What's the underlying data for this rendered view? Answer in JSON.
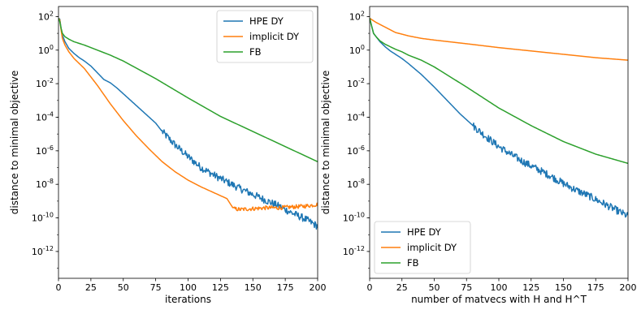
{
  "chart_data": [
    {
      "type": "line",
      "xlabel": "iterations",
      "ylabel": "distance to minimal objective",
      "yscale": "log",
      "xlim": [
        0,
        200
      ],
      "ylim_exp": [
        -13.6,
        2.6
      ],
      "xticks": [
        0,
        25,
        50,
        75,
        100,
        125,
        150,
        175,
        200
      ],
      "yticks_exp": [
        2,
        0,
        -2,
        -4,
        -6,
        -8,
        -10,
        -12
      ],
      "grid": false,
      "legend_placement": "top-right",
      "series": [
        {
          "name": "HPE DY",
          "color": "#1f77b4",
          "noisy_after": 80,
          "noise": 0.22,
          "x": [
            0,
            1,
            2,
            3,
            5,
            8,
            12,
            16,
            20,
            25,
            30,
            35,
            40,
            45,
            50,
            60,
            70,
            75,
            80,
            90,
            100,
            110,
            120,
            130,
            140,
            150,
            160,
            170,
            180,
            190,
            200
          ],
          "log10y": [
            1.9,
            1.85,
            1.3,
            0.9,
            0.5,
            0.1,
            -0.2,
            -0.45,
            -0.65,
            -0.95,
            -1.35,
            -1.75,
            -1.95,
            -2.25,
            -2.6,
            -3.3,
            -4.0,
            -4.35,
            -4.85,
            -5.65,
            -6.35,
            -7.0,
            -7.45,
            -7.85,
            -8.25,
            -8.6,
            -8.95,
            -9.3,
            -9.7,
            -10.05,
            -10.5
          ]
        },
        {
          "name": "implicit DY",
          "color": "#ff7f0e",
          "noisy_after": 135,
          "noise": 0.12,
          "x": [
            0,
            1,
            2,
            3,
            5,
            8,
            12,
            16,
            20,
            25,
            30,
            40,
            50,
            60,
            70,
            80,
            90,
            100,
            110,
            120,
            130,
            135,
            140,
            150,
            160,
            170,
            180,
            190,
            200
          ],
          "log10y": [
            1.9,
            1.8,
            1.2,
            0.7,
            0.3,
            -0.1,
            -0.5,
            -0.8,
            -1.1,
            -1.6,
            -2.1,
            -3.2,
            -4.2,
            -5.1,
            -5.9,
            -6.65,
            -7.25,
            -7.75,
            -8.15,
            -8.5,
            -8.85,
            -9.45,
            -9.5,
            -9.45,
            -9.4,
            -9.4,
            -9.35,
            -9.3,
            -9.2
          ]
        },
        {
          "name": "FB",
          "color": "#2ca02c",
          "x": [
            0,
            1,
            2,
            3,
            5,
            8,
            12,
            16,
            20,
            25,
            30,
            40,
            50,
            75,
            100,
            125,
            150,
            175,
            200
          ],
          "log10y": [
            1.9,
            1.7,
            1.3,
            1.0,
            0.8,
            0.65,
            0.5,
            0.4,
            0.3,
            0.15,
            0.0,
            -0.3,
            -0.65,
            -1.7,
            -2.85,
            -3.95,
            -4.85,
            -5.75,
            -6.65
          ]
        }
      ]
    },
    {
      "type": "line",
      "xlabel": "number of matvecs with H and H^T",
      "ylabel": "distance to minimal objective",
      "yscale": "log",
      "xlim": [
        0,
        200
      ],
      "ylim_exp": [
        -13.6,
        2.6
      ],
      "xticks": [
        0,
        25,
        50,
        75,
        100,
        125,
        150,
        175,
        200
      ],
      "yticks_exp": [
        2,
        0,
        -2,
        -4,
        -6,
        -8,
        -10,
        -12
      ],
      "grid": false,
      "legend_placement": "lower-left",
      "series": [
        {
          "name": "HPE DY",
          "color": "#1f77b4",
          "noisy_after": 80,
          "noise": 0.22,
          "x": [
            0,
            1,
            2,
            3,
            5,
            8,
            12,
            16,
            20,
            25,
            30,
            40,
            50,
            60,
            70,
            80,
            90,
            100,
            110,
            120,
            130,
            140,
            150,
            160,
            170,
            180,
            190,
            200
          ],
          "log10y": [
            1.9,
            1.6,
            1.3,
            1.0,
            0.8,
            0.5,
            0.2,
            -0.05,
            -0.25,
            -0.5,
            -0.8,
            -1.45,
            -2.2,
            -3.0,
            -3.8,
            -4.5,
            -5.15,
            -5.75,
            -6.25,
            -6.7,
            -7.1,
            -7.5,
            -7.95,
            -8.35,
            -8.7,
            -9.1,
            -9.5,
            -9.9
          ]
        },
        {
          "name": "implicit DY",
          "color": "#ff7f0e",
          "x": [
            0,
            2,
            5,
            10,
            15,
            20,
            25,
            30,
            40,
            50,
            75,
            100,
            125,
            150,
            175,
            200
          ],
          "log10y": [
            1.9,
            1.8,
            1.65,
            1.45,
            1.25,
            1.05,
            0.95,
            0.85,
            0.7,
            0.6,
            0.38,
            0.15,
            -0.05,
            -0.25,
            -0.45,
            -0.6
          ]
        },
        {
          "name": "FB",
          "color": "#2ca02c",
          "x": [
            0,
            1,
            2,
            3,
            5,
            8,
            12,
            16,
            20,
            25,
            30,
            40,
            50,
            75,
            100,
            125,
            150,
            175,
            200
          ],
          "log10y": [
            1.9,
            1.6,
            1.3,
            1.0,
            0.8,
            0.55,
            0.35,
            0.2,
            0.05,
            -0.1,
            -0.3,
            -0.6,
            -1.0,
            -2.2,
            -3.45,
            -4.5,
            -5.45,
            -6.2,
            -6.75
          ]
        }
      ]
    }
  ]
}
